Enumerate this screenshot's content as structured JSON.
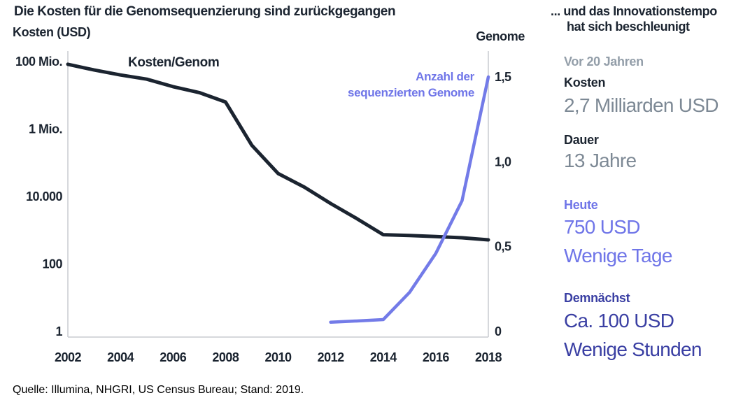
{
  "colors": {
    "ink": "#1b2430",
    "axis_gray": "#c9ccd1",
    "periwinkle_text": "#6f75e8",
    "line_blue": "#737be8",
    "indigo": "#3a3fa3",
    "value_gray": "#7d8995",
    "heading_gray": "#939ea9"
  },
  "chart": {
    "title": "Die Kosten für die Genomsequenzierung sind zurückgegangen",
    "left_axis_title": "Kosten (USD)",
    "right_axis_title": "Genome",
    "cost_line_label": "Kosten/Genom",
    "genome_line_label_line1": "Anzahl der",
    "genome_line_label_line2": "sequenzierten Genome",
    "source": "Quelle: Illumina, NHGRI, US Census Bureau; Stand: 2019."
  },
  "chart_data": {
    "type": "line",
    "title": "Die Kosten für die Genomsequenzierung sind zurückgegangen",
    "grid": false,
    "legend": "inline-labels",
    "x_axis": {
      "range": [
        2002,
        2018
      ],
      "ticks": [
        2002,
        2004,
        2006,
        2008,
        2010,
        2012,
        2014,
        2016,
        2018
      ]
    },
    "y_axis_left": {
      "label": "Kosten (USD)",
      "scale": "log",
      "range": [
        1,
        100000000
      ],
      "ticks": [
        {
          "label": "100 Mio.",
          "value": 100000000
        },
        {
          "label": "1 Mio.",
          "value": 1000000
        },
        {
          "label": "10.000",
          "value": 10000
        },
        {
          "label": "100",
          "value": 100
        },
        {
          "label": "1",
          "value": 1
        }
      ]
    },
    "y_axis_right": {
      "label": "Genome",
      "scale": "linear",
      "range": [
        0,
        1.5
      ],
      "ticks": [
        {
          "label": "1,5",
          "value": 1.5
        },
        {
          "label": "1,0",
          "value": 1.0
        },
        {
          "label": "0,5",
          "value": 0.5
        },
        {
          "label": "0",
          "value": 0
        }
      ]
    },
    "series": [
      {
        "id": "cost_per_genome",
        "name": "Kosten/Genom",
        "axis": "left",
        "color": "#1b2430",
        "x": [
          2002,
          2003,
          2004,
          2005,
          2006,
          2007,
          2008,
          2009,
          2010,
          2011,
          2012,
          2013,
          2014,
          2015,
          2016,
          2017,
          2018
        ],
        "values": [
          83000000,
          56000000,
          40000000,
          30000000,
          18000000,
          12000000,
          6300000,
          330000,
          48000,
          19000,
          6200,
          2200,
          740,
          700,
          650,
          600,
          520
        ]
      },
      {
        "id": "sequenced_genomes",
        "name": "Anzahl der sequenzierten Genome",
        "axis": "right",
        "color": "#737be8",
        "x": [
          2012,
          2013,
          2014,
          2015,
          2016,
          2017,
          2018
        ],
        "values": [
          0.055,
          0.062,
          0.07,
          0.23,
          0.46,
          0.77,
          1.5
        ]
      }
    ]
  },
  "sidebar": {
    "title_line1": "... und das Innovationstempo",
    "title_line2": "hat sich beschleunigt",
    "sections": [
      {
        "heading": "Vor 20 Jahren",
        "items": [
          {
            "label": "Kosten",
            "value": "2,7 Milliarden USD"
          },
          {
            "label": "Dauer",
            "value": "13 Jahre"
          }
        ]
      },
      {
        "heading": "Heute",
        "items": [
          {
            "value": "750 USD"
          },
          {
            "value": "Wenige Tage"
          }
        ]
      },
      {
        "heading": "Demnächst",
        "items": [
          {
            "value": "Ca. 100 USD"
          },
          {
            "value": "Wenige Stunden"
          }
        ]
      }
    ]
  }
}
